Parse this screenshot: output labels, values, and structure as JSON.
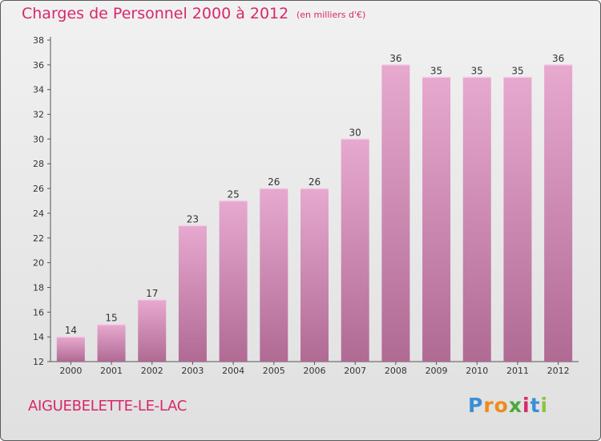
{
  "header": {
    "title": "Charges de Personnel 2000 à 2012",
    "subtitle": "(en milliers d'€)"
  },
  "footer": {
    "commune": "AIGUEBELETTE-LE-LAC",
    "logo_letters": [
      {
        "char": "P",
        "color": "#3a8fd6"
      },
      {
        "char": "r",
        "color": "#f08a1c"
      },
      {
        "char": "o",
        "color": "#f08a1c"
      },
      {
        "char": "x",
        "color": "#4ba83c"
      },
      {
        "char": "i",
        "color": "#d8276b"
      },
      {
        "char": "t",
        "color": "#3a8fd6"
      },
      {
        "char": "i",
        "color": "#8cc63e"
      }
    ]
  },
  "colors": {
    "bar_top": "#e7a9cf",
    "bar_bottom": "#b06a94",
    "accent": "#d8276b"
  },
  "chart_data": {
    "type": "bar",
    "categories": [
      "2000",
      "2001",
      "2002",
      "2003",
      "2004",
      "2005",
      "2006",
      "2007",
      "2008",
      "2009",
      "2010",
      "2011",
      "2012"
    ],
    "values": [
      14,
      15,
      17,
      23,
      25,
      26,
      26,
      30,
      36,
      35,
      35,
      35,
      36
    ],
    "title": "Charges de Personnel 2000 à 2012",
    "subtitle": "(en milliers d'€)",
    "ylim": [
      12,
      38
    ],
    "yticks": [
      12,
      14,
      16,
      18,
      20,
      22,
      24,
      26,
      28,
      30,
      32,
      34,
      36,
      38
    ],
    "grid": false,
    "data_labels": true
  }
}
